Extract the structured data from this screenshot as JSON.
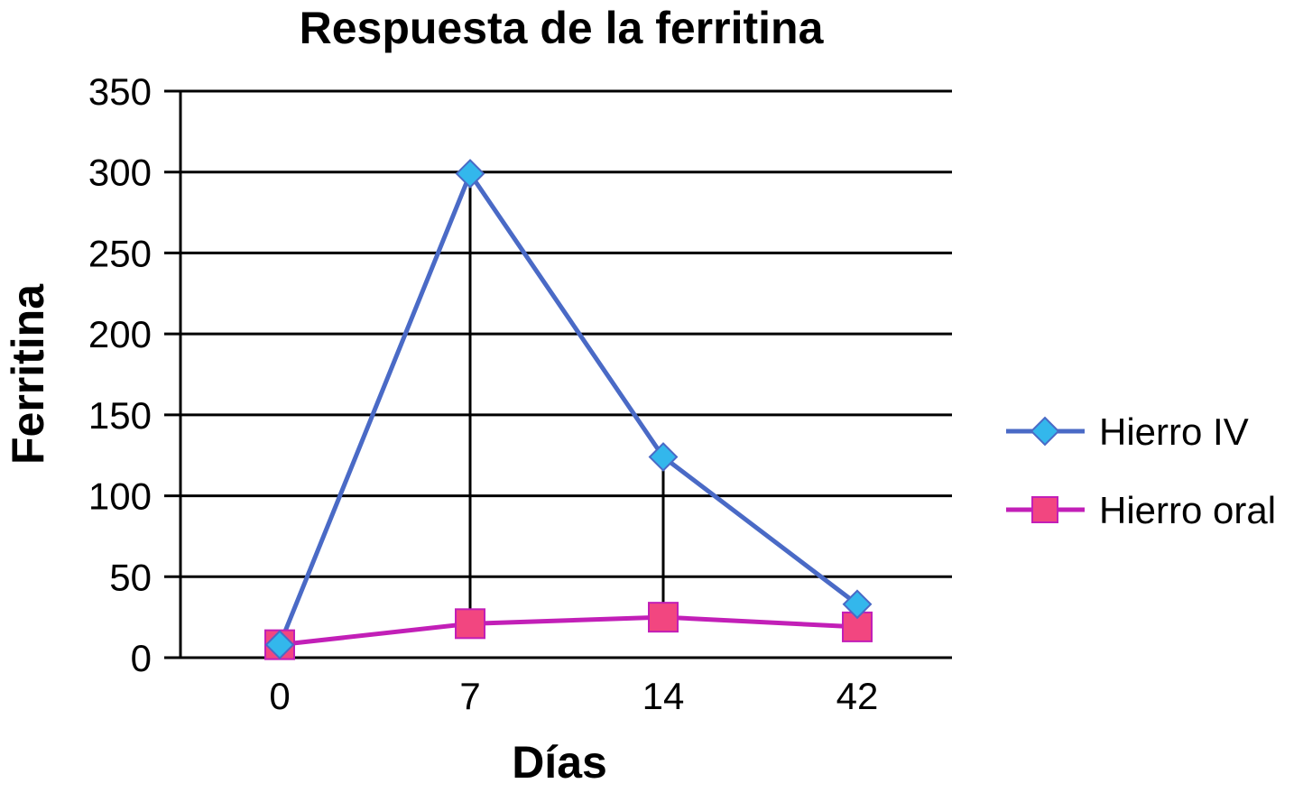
{
  "chart_data": {
    "type": "line",
    "title": "Respuesta de la ferritina",
    "xlabel": "Días",
    "ylabel": "Ferritina",
    "categories": [
      "0",
      "7",
      "14",
      "42"
    ],
    "ylim": [
      0,
      350
    ],
    "yticks": [
      0,
      50,
      100,
      150,
      200,
      250,
      300,
      350
    ],
    "grid": true,
    "legend_position": "right",
    "series": [
      {
        "name": "Hierro IV",
        "values": [
          8,
          299,
          124,
          33
        ],
        "color": "#4a6ac6",
        "marker": "diamond",
        "marker_color": "#33b7ec"
      },
      {
        "name": "Hierro oral",
        "values": [
          8,
          21,
          25,
          19
        ],
        "color": "#c21fb7",
        "marker": "square",
        "marker_color": "#f24680"
      }
    ],
    "drop_lines": [
      {
        "category": "7",
        "from": 299,
        "to": 21
      },
      {
        "category": "14",
        "from": 124,
        "to": 25
      },
      {
        "category": "42",
        "from": 33,
        "to": 19
      }
    ]
  }
}
